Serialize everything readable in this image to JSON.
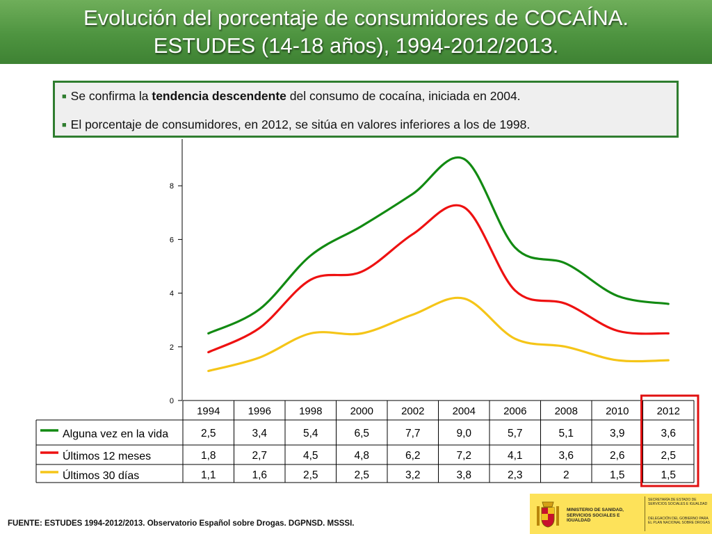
{
  "header": {
    "title_line1": "Evolución del porcentaje de consumidores de COCAÍNA.",
    "title_line2": "ESTUDES (14-18 años), 1994-2012/2013."
  },
  "notes": {
    "n1_before": "Se confirma la ",
    "n1_bold": "tendencia descendente",
    "n1_after": " del consumo de cocaína, iniciada en 2004.",
    "n2": "El porcentaje de consumidores, en 2012, se sitúa en valores inferiores a los de 1998."
  },
  "chart_data": {
    "type": "line",
    "categories": [
      "1994",
      "1996",
      "1998",
      "2000",
      "2002",
      "2004",
      "2006",
      "2008",
      "2010",
      "2012"
    ],
    "series": [
      {
        "name": "Alguna vez en la vida",
        "color": "#128a12",
        "values": [
          2.5,
          3.4,
          5.4,
          6.5,
          7.7,
          9.0,
          5.7,
          5.1,
          3.9,
          3.6
        ]
      },
      {
        "name": "Últimos 12 meses",
        "color": "#ee1111",
        "values": [
          1.8,
          2.7,
          4.5,
          4.8,
          6.2,
          7.2,
          4.1,
          3.6,
          2.6,
          2.5
        ]
      },
      {
        "name": "Últimos 30 días",
        "color": "#f5c518",
        "values": [
          1.1,
          1.6,
          2.5,
          2.5,
          3.2,
          3.8,
          2.3,
          2,
          1.5,
          1.5
        ]
      }
    ],
    "table_values": [
      [
        "2,5",
        "3,4",
        "5,4",
        "6,5",
        "7,7",
        "9,0",
        "5,7",
        "5,1",
        "3,9",
        "3,6"
      ],
      [
        "1,8",
        "2,7",
        "4,5",
        "4,8",
        "6,2",
        "7,2",
        "4,1",
        "3,6",
        "2,6",
        "2,5"
      ],
      [
        "1,1",
        "1,6",
        "2,5",
        "2,5",
        "3,2",
        "3,8",
        "2,3",
        "2",
        "1,5",
        "1,5"
      ]
    ],
    "yticks": [
      "0",
      "2",
      "4",
      "6",
      "8"
    ],
    "ylim": [
      0,
      9.5
    ],
    "highlight_category": "2012",
    "highlight_color": "#e01010",
    "legend": "bottom-table"
  },
  "source": "FUENTE: ESTUDES 1994-2012/2013. Observatorio Español sobre Drogas. DGPNSD. MSSSI.",
  "footer_logo": {
    "ministry": "MINISTERIO DE SANIDAD, SERVICIOS SOCIALES E IGUALDAD",
    "secretaria": "SECRETARÍA DE ESTADO DE SERVICIOS SOCIALES E IGUALDAD",
    "delegacion": "DELEGACIÓN DEL GOBIERNO PARA EL PLAN NACIONAL SOBRE DROGAS"
  }
}
